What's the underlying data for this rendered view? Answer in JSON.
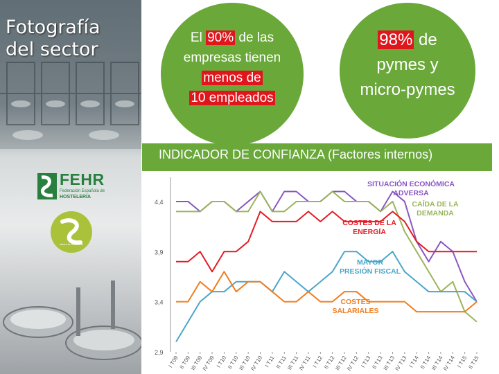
{
  "sidebar": {
    "title_line1": "Fotografía",
    "title_line2": "del sector",
    "logo_name": "FEHR",
    "logo_sub1": "Federación Española de",
    "logo_sub2": "HOSTELERÍA",
    "seal_motto": "sabes la hostelería"
  },
  "bubble1": {
    "pre": "El ",
    "pct": "90%",
    "mid": " de las",
    "line2": "empresas tienen",
    "line3": "menos de",
    "line4": "10 empleados"
  },
  "bubble2": {
    "pct": "98%",
    "mid": " de",
    "line2": "pymes y",
    "line3": "micro-pymes"
  },
  "colors": {
    "green": "#6aa83a",
    "red_highlight": "#e0161d"
  },
  "chart_data": {
    "type": "line",
    "title": "INDICADOR DE CONFIANZA (Factores internos)",
    "ylim": [
      2.9,
      4.6
    ],
    "y_ticks": [
      "4,4",
      "3,9",
      "3,4",
      "2,9"
    ],
    "y_tick_values": [
      4.4,
      3.9,
      3.4,
      2.9
    ],
    "categories": [
      "I T09",
      "II T09",
      "III T09",
      "IV T09",
      "I T10",
      "II T10",
      "III T10",
      "IV T10",
      "I T11",
      "II T11",
      "III T11",
      "IV T11",
      "I T12",
      "II T12",
      "III T12",
      "IV T12",
      "I T13",
      "II T13",
      "III T13",
      "IV T13",
      "I T14",
      "II T14",
      "III T14",
      "IV T14",
      "I T15",
      "II T15"
    ],
    "series": [
      {
        "name": "SITUACIÓN ECONÓMICA ADVERSA",
        "color": "#8a57c2",
        "values": [
          4.4,
          4.4,
          4.3,
          4.4,
          4.4,
          4.3,
          4.4,
          4.5,
          4.3,
          4.5,
          4.5,
          4.4,
          4.4,
          4.5,
          4.5,
          4.4,
          4.4,
          4.3,
          4.5,
          4.4,
          4.0,
          3.8,
          4.0,
          3.9,
          3.6,
          3.4
        ]
      },
      {
        "name": "CAÍDA DE LA DEMANDA",
        "color": "#9ab55a",
        "values": [
          4.3,
          4.3,
          4.3,
          4.4,
          4.4,
          4.3,
          4.3,
          4.5,
          4.3,
          4.3,
          4.4,
          4.4,
          4.4,
          4.5,
          4.4,
          4.4,
          4.4,
          4.3,
          4.4,
          4.1,
          3.9,
          3.7,
          3.5,
          3.6,
          3.3,
          3.2
        ]
      },
      {
        "name": "COSTES DE LA ENERGÍA",
        "color": "#e31b23",
        "values": [
          3.8,
          3.8,
          3.9,
          3.7,
          3.9,
          3.9,
          4.0,
          4.3,
          4.2,
          4.2,
          4.2,
          4.3,
          4.2,
          4.3,
          4.2,
          4.2,
          4.2,
          4.2,
          4.3,
          4.2,
          4.0,
          3.9,
          3.9,
          3.9,
          3.9,
          3.9
        ]
      },
      {
        "name": "MAYOR PRESIÓN FISCAL",
        "color": "#4aa5c9",
        "values": [
          3.0,
          3.2,
          3.4,
          3.5,
          3.5,
          3.6,
          3.6,
          3.6,
          3.5,
          3.7,
          3.6,
          3.5,
          3.6,
          3.7,
          3.9,
          3.9,
          3.8,
          3.8,
          3.9,
          3.7,
          3.6,
          3.5,
          3.5,
          3.5,
          3.5,
          3.4
        ]
      },
      {
        "name": "COSTES SALARIALES",
        "color": "#ef7d1e",
        "values": [
          3.4,
          3.4,
          3.6,
          3.5,
          3.7,
          3.5,
          3.6,
          3.6,
          3.5,
          3.4,
          3.4,
          3.5,
          3.4,
          3.4,
          3.5,
          3.5,
          3.4,
          3.4,
          3.4,
          3.4,
          3.3,
          3.3,
          3.3,
          3.3,
          3.3,
          3.4
        ]
      }
    ],
    "annotations": [
      {
        "series": 0,
        "line1": "SITUACIÓN ECONÓMICA",
        "line2": "ADVERSA"
      },
      {
        "series": 1,
        "line1": "CAÍDA DE LA",
        "line2": "DEMANDA"
      },
      {
        "series": 2,
        "line1": "COSTES DE LA",
        "line2": "ENERGÍA"
      },
      {
        "series": 3,
        "line1": "MAYOR",
        "line2": "PRESIÓN FISCAL"
      },
      {
        "series": 4,
        "line1": "COSTES",
        "line2": "SALARIALES"
      }
    ],
    "grid": false,
    "legend": "inline"
  }
}
